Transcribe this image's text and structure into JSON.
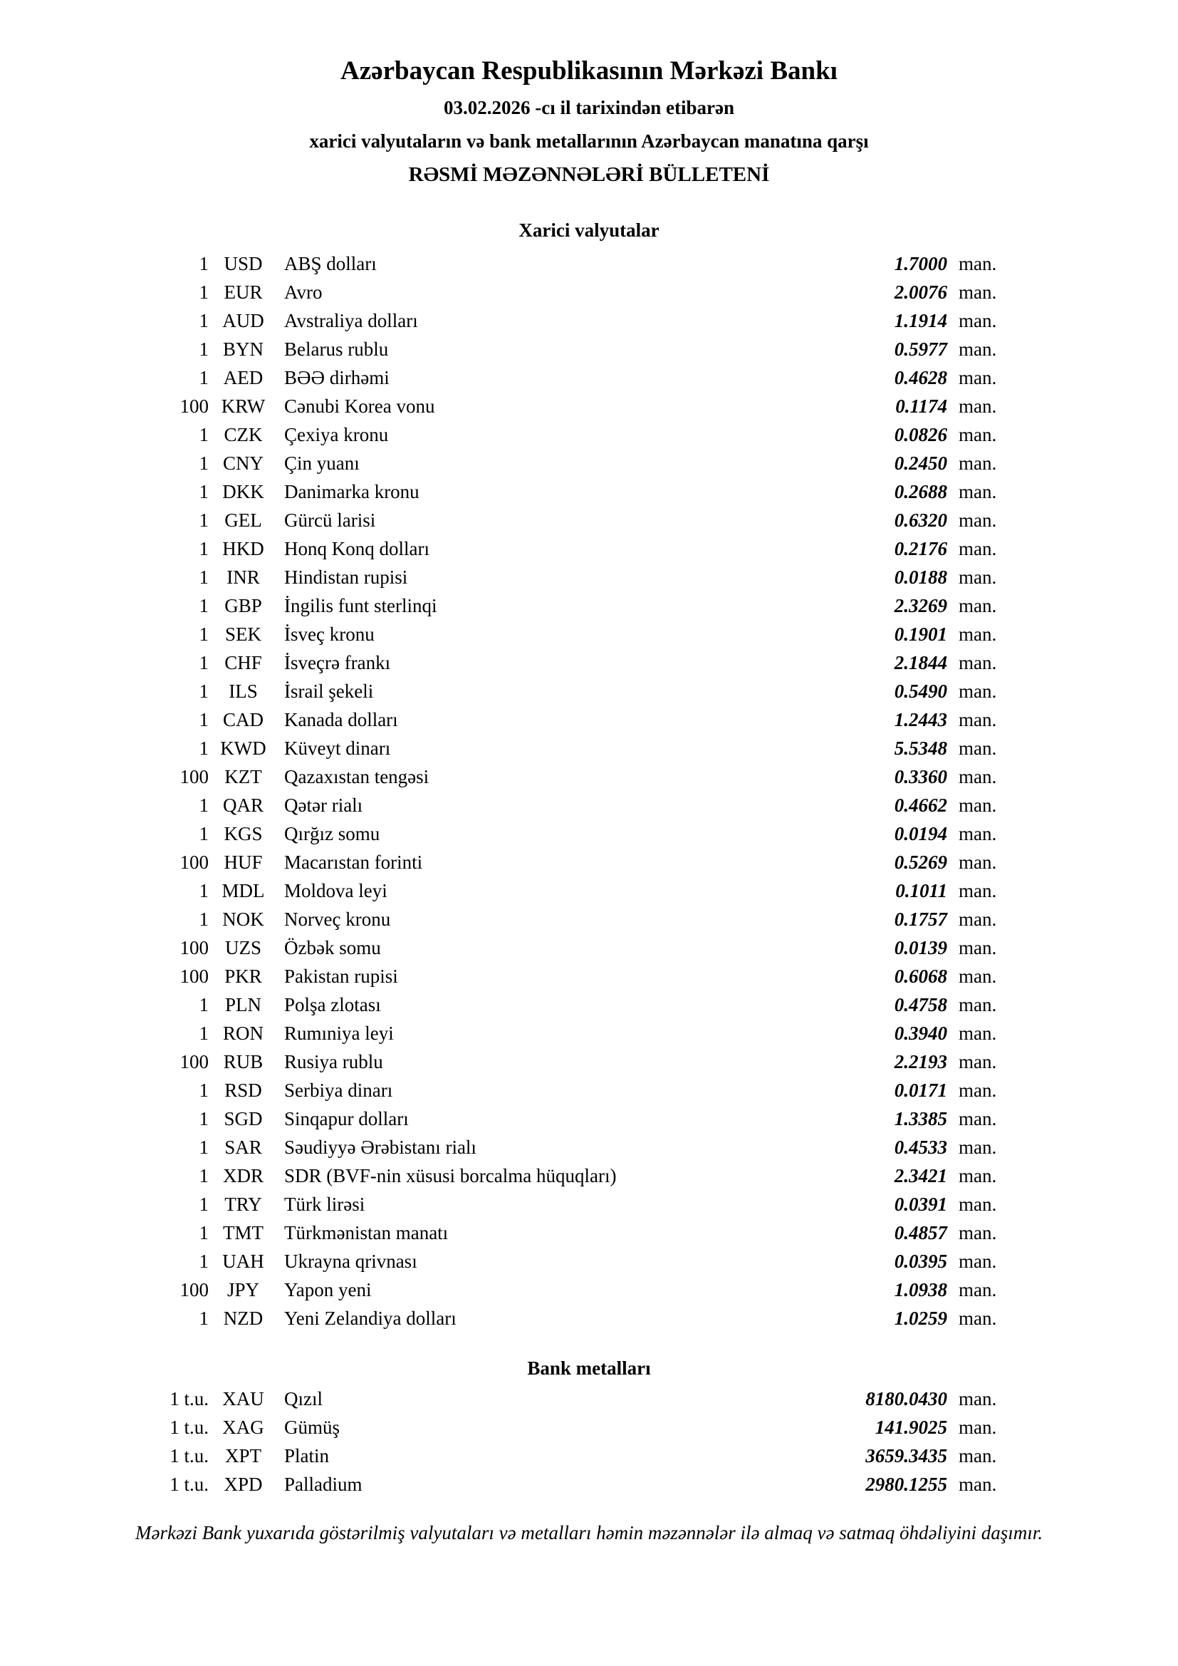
{
  "header": {
    "bank_title": "Azərbaycan Respublikasının Mərkəzi Bankı",
    "date_line": "03.02.2026 -cı il tarixindən etibarən",
    "subtitle": "xarici valyutaların və bank metallarının Azərbaycan manatına qarşı",
    "bulletin_title": "RƏSMİ MƏZƏNNƏLƏRİ BÜLLETENİ"
  },
  "currency_section": {
    "title": "Xarici valyutalar",
    "unit_label": "man.",
    "rows": [
      {
        "qty": "1",
        "code": "USD",
        "name": "ABŞ dolları",
        "rate": "1.7000"
      },
      {
        "qty": "1",
        "code": "EUR",
        "name": "Avro",
        "rate": "2.0076"
      },
      {
        "qty": "1",
        "code": "AUD",
        "name": "Avstraliya dolları",
        "rate": "1.1914"
      },
      {
        "qty": "1",
        "code": "BYN",
        "name": "Belarus rublu",
        "rate": "0.5977"
      },
      {
        "qty": "1",
        "code": "AED",
        "name": "BƏƏ dirhəmi",
        "rate": "0.4628"
      },
      {
        "qty": "100",
        "code": "KRW",
        "name": "Cənubi Korea vonu",
        "rate": "0.1174"
      },
      {
        "qty": "1",
        "code": "CZK",
        "name": "Çexiya kronu",
        "rate": "0.0826"
      },
      {
        "qty": "1",
        "code": "CNY",
        "name": "Çin yuanı",
        "rate": "0.2450"
      },
      {
        "qty": "1",
        "code": "DKK",
        "name": "Danimarka kronu",
        "rate": "0.2688"
      },
      {
        "qty": "1",
        "code": "GEL",
        "name": "Gürcü larisi",
        "rate": "0.6320"
      },
      {
        "qty": "1",
        "code": "HKD",
        "name": "Honq Konq dolları",
        "rate": "0.2176"
      },
      {
        "qty": "1",
        "code": "INR",
        "name": "Hindistan rupisi",
        "rate": "0.0188"
      },
      {
        "qty": "1",
        "code": "GBP",
        "name": "İngilis funt sterlinqi",
        "rate": "2.3269"
      },
      {
        "qty": "1",
        "code": "SEK",
        "name": "İsveç kronu",
        "rate": "0.1901"
      },
      {
        "qty": "1",
        "code": "CHF",
        "name": "İsveçrə frankı",
        "rate": "2.1844"
      },
      {
        "qty": "1",
        "code": "ILS",
        "name": "İsrail şekeli",
        "rate": "0.5490"
      },
      {
        "qty": "1",
        "code": "CAD",
        "name": "Kanada dolları",
        "rate": "1.2443"
      },
      {
        "qty": "1",
        "code": "KWD",
        "name": "Küveyt dinarı",
        "rate": "5.5348"
      },
      {
        "qty": "100",
        "code": "KZT",
        "name": "Qazaxıstan tengəsi",
        "rate": "0.3360"
      },
      {
        "qty": "1",
        "code": "QAR",
        "name": "Qətər rialı",
        "rate": "0.4662"
      },
      {
        "qty": "1",
        "code": "KGS",
        "name": "Qırğız somu",
        "rate": "0.0194"
      },
      {
        "qty": "100",
        "code": "HUF",
        "name": "Macarıstan forinti",
        "rate": "0.5269"
      },
      {
        "qty": "1",
        "code": "MDL",
        "name": "Moldova leyi",
        "rate": "0.1011"
      },
      {
        "qty": "1",
        "code": "NOK",
        "name": "Norveç kronu",
        "rate": "0.1757"
      },
      {
        "qty": "100",
        "code": "UZS",
        "name": "Özbək somu",
        "rate": "0.0139"
      },
      {
        "qty": "100",
        "code": "PKR",
        "name": "Pakistan rupisi",
        "rate": "0.6068"
      },
      {
        "qty": "1",
        "code": "PLN",
        "name": "Polşa zlotası",
        "rate": "0.4758"
      },
      {
        "qty": "1",
        "code": "RON",
        "name": "Rumıniya leyi",
        "rate": "0.3940"
      },
      {
        "qty": "100",
        "code": "RUB",
        "name": "Rusiya rublu",
        "rate": "2.2193"
      },
      {
        "qty": "1",
        "code": "RSD",
        "name": "Serbiya dinarı",
        "rate": "0.0171"
      },
      {
        "qty": "1",
        "code": "SGD",
        "name": "Sinqapur dolları",
        "rate": "1.3385"
      },
      {
        "qty": "1",
        "code": "SAR",
        "name": "Səudiyyə Ərəbistanı rialı",
        "rate": "0.4533"
      },
      {
        "qty": "1",
        "code": "XDR",
        "name": "SDR (BVF-nin xüsusi borcalma hüquqları)",
        "rate": "2.3421"
      },
      {
        "qty": "1",
        "code": "TRY",
        "name": "Türk lirəsi",
        "rate": "0.0391"
      },
      {
        "qty": "1",
        "code": "TMT",
        "name": "Türkmənistan manatı",
        "rate": "0.4857"
      },
      {
        "qty": "1",
        "code": "UAH",
        "name": "Ukrayna qrivnası",
        "rate": "0.0395"
      },
      {
        "qty": "100",
        "code": "JPY",
        "name": "Yapon yeni",
        "rate": "1.0938"
      },
      {
        "qty": "1",
        "code": "NZD",
        "name": "Yeni Zelandiya dolları",
        "rate": "1.0259"
      }
    ]
  },
  "metals_section": {
    "title": "Bank metalları",
    "unit_label": "man.",
    "rows": [
      {
        "qty": "1 t.u.",
        "code": "XAU",
        "name": "Qızıl",
        "rate": "8180.0430"
      },
      {
        "qty": "1 t.u.",
        "code": "XAG",
        "name": "Gümüş",
        "rate": "141.9025"
      },
      {
        "qty": "1 t.u.",
        "code": "XPT",
        "name": "Platin",
        "rate": "3659.3435"
      },
      {
        "qty": "1 t.u.",
        "code": "XPD",
        "name": "Palladium",
        "rate": "2980.1255"
      }
    ]
  },
  "footer": {
    "note": "Mərkəzi Bank yuxarıda göstərilmiş valyutaları və metalları həmin məzənnələr ilə almaq və satmaq öhdəliyini daşımır."
  }
}
